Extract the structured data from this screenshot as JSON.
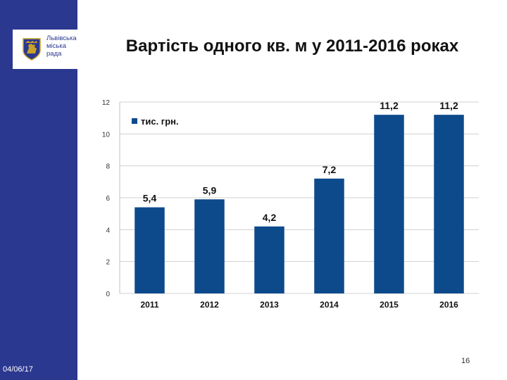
{
  "slide": {
    "title": "Вартість одного кв. м у 2011-2016 роках",
    "date": "04/06/17",
    "page_number": "16"
  },
  "logo": {
    "lines": [
      "Львівська",
      "міська",
      "рада"
    ]
  },
  "colors": {
    "sidebar": "#2b3890",
    "bar": "#0d4a8c",
    "title": "#111111"
  },
  "chart_data": {
    "type": "bar",
    "categories": [
      "2011",
      "2012",
      "2013",
      "2014",
      "2015",
      "2016"
    ],
    "series": [
      {
        "name": "тис. грн.",
        "values": [
          5.4,
          5.9,
          4.2,
          7.2,
          11.2,
          11.2
        ]
      }
    ],
    "data_labels": [
      "5,4",
      "5,9",
      "4,2",
      "7,2",
      "11,2",
      "11,2"
    ],
    "ylim": [
      0,
      12
    ],
    "yticks": [
      0,
      2,
      4,
      6,
      8,
      10,
      12
    ],
    "ytick_labels": [
      "0",
      "2",
      "4",
      "6",
      "8",
      "10",
      "12"
    ],
    "grid": true,
    "legend_position": "top-left"
  }
}
